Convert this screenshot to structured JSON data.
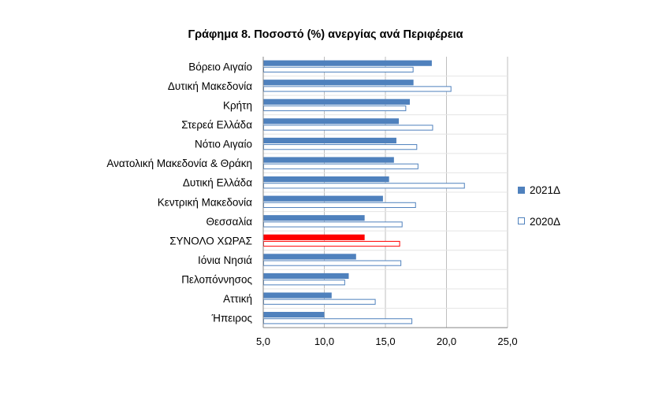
{
  "chart_data": {
    "type": "bar",
    "orientation": "horizontal",
    "title": "Γράφημα 8. Ποσοστό (%) ανεργίας ανά Περιφέρεια",
    "categories": [
      "Βόρειο Αιγαίο",
      "Δυτική Μακεδονία",
      "Κρήτη",
      "Στερεά Ελλάδα",
      "Νότιο Αιγαίο",
      "Ανατολική Μακεδονία & Θράκη",
      "Δυτική Ελλάδα",
      "Κεντρική Μακεδονία",
      "Θεσσαλία",
      "ΣΥΝΟΛΟ ΧΩΡΑΣ",
      "Ιόνια Νησιά",
      "Πελοπόννησος",
      "Αττική",
      "Ήπειρος"
    ],
    "series": [
      {
        "name": "2021Δ",
        "color": "#4f81bd",
        "fill": "solid",
        "values": [
          18.8,
          17.3,
          17.0,
          16.1,
          15.9,
          15.7,
          15.3,
          14.8,
          13.3,
          13.3,
          12.6,
          12.0,
          10.6,
          10.0
        ]
      },
      {
        "name": "2020Δ",
        "color": "#4f81bd",
        "fill": "outline",
        "values": [
          17.3,
          20.4,
          16.7,
          18.9,
          17.6,
          17.7,
          21.5,
          17.5,
          16.4,
          16.2,
          16.3,
          11.7,
          14.2,
          17.2
        ]
      }
    ],
    "highlight": {
      "category": "ΣΥΝΟΛΟ ΧΩΡΑΣ",
      "color": "#ff0000"
    },
    "xlim": [
      5,
      25
    ],
    "xticks": [
      "5,0",
      "10,0",
      "15,0",
      "20,0",
      "25,0"
    ],
    "xtick_values": [
      5,
      10,
      15,
      20,
      25
    ],
    "grid": true,
    "legend_position": "right"
  }
}
